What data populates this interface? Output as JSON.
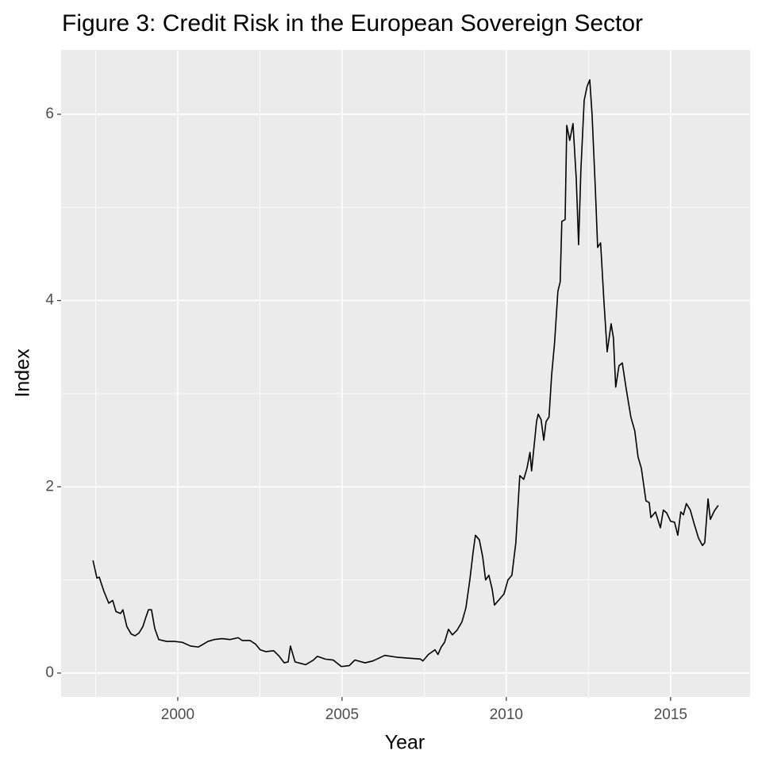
{
  "chart_data": {
    "type": "line",
    "title": "Figure 3: Credit Risk in the European Sovereign Sector",
    "x_label": "Year",
    "y_label": "Index",
    "color": "#000000",
    "x": [
      1997.42,
      1997.54,
      1997.61,
      1997.75,
      1997.9,
      1998.02,
      1998.12,
      1998.26,
      1998.33,
      1998.45,
      1998.58,
      1998.7,
      1998.82,
      1998.94,
      1999.03,
      1999.11,
      1999.2,
      1999.3,
      1999.42,
      1999.66,
      1999.9,
      2000.14,
      2000.39,
      2000.63,
      2000.92,
      2001.11,
      2001.35,
      2001.59,
      2001.84,
      2001.96,
      2002.2,
      2002.37,
      2002.51,
      2002.68,
      2002.92,
      2003.09,
      2003.24,
      2003.36,
      2003.43,
      2003.57,
      2003.89,
      2004.13,
      2004.25,
      2004.49,
      2004.73,
      2004.98,
      2005.22,
      2005.39,
      2005.7,
      2005.94,
      2006.3,
      2006.67,
      2007.03,
      2007.39,
      2007.46,
      2007.63,
      2007.83,
      2007.92,
      2008.02,
      2008.12,
      2008.24,
      2008.36,
      2008.5,
      2008.65,
      2008.77,
      2008.89,
      2008.99,
      2009.06,
      2009.18,
      2009.28,
      2009.37,
      2009.47,
      2009.57,
      2009.64,
      2009.81,
      2009.93,
      2010.05,
      2010.17,
      2010.29,
      2010.41,
      2010.53,
      2010.63,
      2010.72,
      2010.77,
      2010.92,
      2010.97,
      2011.06,
      2011.14,
      2011.21,
      2011.3,
      2011.38,
      2011.47,
      2011.57,
      2011.64,
      2011.69,
      2011.79,
      2011.84,
      2011.93,
      2012.03,
      2012.13,
      2012.2,
      2012.27,
      2012.37,
      2012.46,
      2012.54,
      2012.61,
      2012.71,
      2012.78,
      2012.87,
      2012.97,
      2013.07,
      2013.19,
      2013.26,
      2013.33,
      2013.43,
      2013.53,
      2013.65,
      2013.79,
      2013.91,
      2014.01,
      2014.11,
      2014.25,
      2014.35,
      2014.4,
      2014.54,
      2014.69,
      2014.78,
      2014.88,
      2015.0,
      2015.12,
      2015.22,
      2015.31,
      2015.39,
      2015.48,
      2015.6,
      2015.72,
      2015.85,
      2015.97,
      2016.04,
      2016.14,
      2016.21,
      2016.33,
      2016.45
    ],
    "values": [
      1.21,
      1.02,
      1.03,
      0.88,
      0.75,
      0.78,
      0.66,
      0.64,
      0.68,
      0.5,
      0.42,
      0.4,
      0.43,
      0.5,
      0.6,
      0.68,
      0.68,
      0.48,
      0.36,
      0.34,
      0.34,
      0.33,
      0.29,
      0.28,
      0.34,
      0.36,
      0.37,
      0.36,
      0.38,
      0.35,
      0.35,
      0.31,
      0.25,
      0.23,
      0.24,
      0.18,
      0.11,
      0.12,
      0.29,
      0.12,
      0.09,
      0.14,
      0.18,
      0.15,
      0.14,
      0.07,
      0.08,
      0.14,
      0.11,
      0.13,
      0.19,
      0.17,
      0.16,
      0.15,
      0.13,
      0.2,
      0.25,
      0.2,
      0.28,
      0.33,
      0.47,
      0.41,
      0.46,
      0.55,
      0.7,
      1.0,
      1.3,
      1.48,
      1.43,
      1.25,
      1.0,
      1.05,
      0.9,
      0.73,
      0.8,
      0.85,
      1.0,
      1.05,
      1.4,
      2.12,
      2.08,
      2.2,
      2.37,
      2.17,
      2.7,
      2.78,
      2.72,
      2.5,
      2.7,
      2.75,
      3.2,
      3.55,
      4.1,
      4.2,
      4.85,
      4.87,
      5.88,
      5.72,
      5.9,
      5.3,
      4.6,
      5.4,
      6.15,
      6.3,
      6.37,
      6.0,
      5.2,
      4.57,
      4.62,
      4.0,
      3.45,
      3.75,
      3.6,
      3.07,
      3.3,
      3.33,
      3.05,
      2.75,
      2.6,
      2.32,
      2.2,
      1.85,
      1.83,
      1.67,
      1.73,
      1.56,
      1.75,
      1.72,
      1.63,
      1.62,
      1.48,
      1.73,
      1.7,
      1.82,
      1.75,
      1.6,
      1.45,
      1.37,
      1.4,
      1.87,
      1.65,
      1.74,
      1.8
    ],
    "xlim": [
      1996.45,
      2017.42
    ],
    "ylim": [
      -0.256,
      6.69
    ],
    "xticks": [
      2000,
      2005,
      2010,
      2015
    ],
    "yticks": [
      0,
      2,
      4,
      6
    ],
    "grid": true,
    "minor_grid": true
  }
}
